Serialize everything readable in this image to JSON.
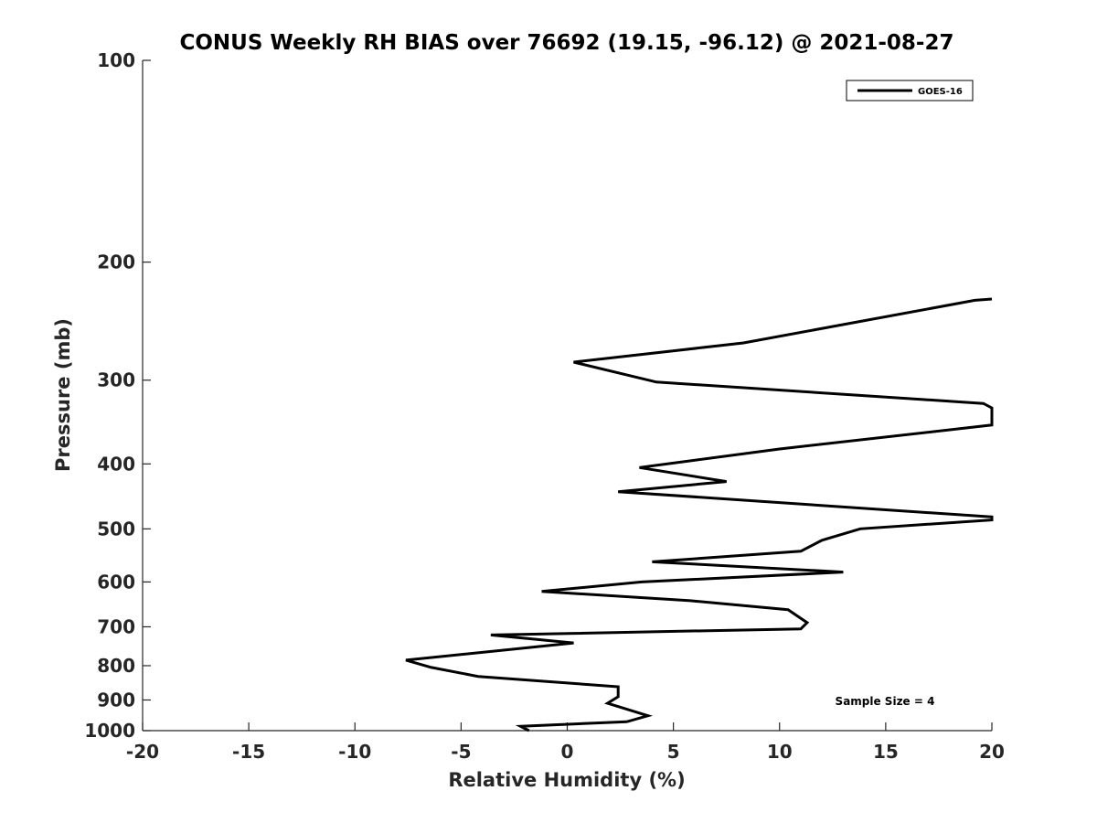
{
  "chart_data": {
    "type": "line",
    "title": "CONUS Weekly RH BIAS over 76692 (19.15, -96.12) @ 2021-08-27",
    "xlabel": "Relative Humidity (%)",
    "ylabel": "Pressure (mb)",
    "xlim": [
      -20,
      20
    ],
    "ylim": [
      100,
      1000
    ],
    "y_scale": "log",
    "y_reversed": true,
    "x_ticks": [
      "-20",
      "-15",
      "-10",
      "-5",
      "0",
      "5",
      "10",
      "15",
      "20"
    ],
    "y_ticks": [
      {
        "value": 100,
        "label": "100"
      },
      {
        "value": 200,
        "label": "200"
      },
      {
        "value": 300,
        "label": "300"
      },
      {
        "value": 400,
        "label": "400"
      },
      {
        "value": 500,
        "label": "500"
      },
      {
        "value": 600,
        "label": "600"
      },
      {
        "value": 700,
        "label": "700"
      },
      {
        "value": 800,
        "label": "800"
      },
      {
        "value": 900,
        "label": "900"
      },
      {
        "value": 1000,
        "label": "1000"
      }
    ],
    "grid": false,
    "legend": {
      "position": "top-right",
      "entries": [
        "GOES-16"
      ]
    },
    "annotation": "Sample Size = 4",
    "series": [
      {
        "name": "GOES-16",
        "color": "#000000",
        "points": [
          {
            "x": -1.8,
            "p": 1000
          },
          {
            "x": -2.2,
            "p": 985
          },
          {
            "x": 2.8,
            "p": 970
          },
          {
            "x": 3.8,
            "p": 950
          },
          {
            "x": 1.9,
            "p": 910
          },
          {
            "x": 2.4,
            "p": 890
          },
          {
            "x": 2.4,
            "p": 860
          },
          {
            "x": -4.2,
            "p": 830
          },
          {
            "x": -6.4,
            "p": 805
          },
          {
            "x": -7.6,
            "p": 785
          },
          {
            "x": 0.3,
            "p": 740
          },
          {
            "x": -3.6,
            "p": 720
          },
          {
            "x": 11.0,
            "p": 705
          },
          {
            "x": 11.3,
            "p": 690
          },
          {
            "x": 10.4,
            "p": 660
          },
          {
            "x": 5.8,
            "p": 640
          },
          {
            "x": -1.2,
            "p": 620
          },
          {
            "x": 3.5,
            "p": 600
          },
          {
            "x": 13.0,
            "p": 580
          },
          {
            "x": 4.0,
            "p": 560
          },
          {
            "x": 11.0,
            "p": 540
          },
          {
            "x": 12.0,
            "p": 520
          },
          {
            "x": 13.8,
            "p": 500
          },
          {
            "x": 20.0,
            "p": 485
          },
          {
            "x": 20.0,
            "p": 480
          },
          {
            "x": 2.4,
            "p": 440
          },
          {
            "x": 7.5,
            "p": 425
          },
          {
            "x": 3.4,
            "p": 405
          },
          {
            "x": 10.0,
            "p": 380
          },
          {
            "x": 20.0,
            "p": 350
          },
          {
            "x": 20.0,
            "p": 330
          },
          {
            "x": 19.6,
            "p": 325
          },
          {
            "x": 4.2,
            "p": 302
          },
          {
            "x": 0.3,
            "p": 282
          },
          {
            "x": 8.3,
            "p": 264
          },
          {
            "x": 19.2,
            "p": 228
          },
          {
            "x": 20.0,
            "p": 227
          }
        ]
      }
    ]
  }
}
